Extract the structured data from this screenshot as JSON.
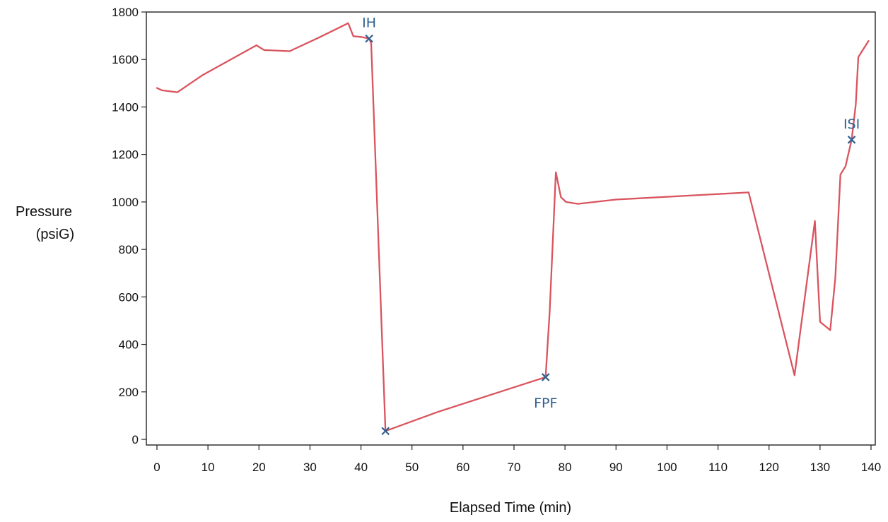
{
  "chart_data": {
    "type": "line",
    "title": "",
    "xlabel": "Elapsed Time (min)",
    "ylabel_lines": [
      "Pressure",
      "(psiG)"
    ],
    "xlim": [
      0,
      140
    ],
    "ylim": [
      0,
      1800
    ],
    "xticks": [
      0,
      10,
      20,
      30,
      40,
      50,
      60,
      70,
      80,
      90,
      100,
      110,
      120,
      130,
      140
    ],
    "yticks": [
      0,
      200,
      400,
      600,
      800,
      1000,
      1200,
      1400,
      1600,
      1800
    ],
    "grid": false,
    "legend": "none",
    "series": [
      {
        "color": "#d9545e",
        "points": [
          [
            0,
            1480
          ],
          [
            1,
            1470
          ],
          [
            4,
            1462
          ],
          [
            9,
            1535
          ],
          [
            19.5,
            1660
          ],
          [
            21,
            1640
          ],
          [
            26,
            1635
          ],
          [
            32,
            1695
          ],
          [
            37.5,
            1753
          ],
          [
            38.5,
            1698
          ],
          [
            40,
            1695
          ],
          [
            41.6,
            1688
          ],
          [
            42,
            1668
          ],
          [
            44.8,
            35
          ],
          [
            55,
            115
          ],
          [
            76.2,
            262
          ],
          [
            77,
            540
          ],
          [
            78.2,
            1125
          ],
          [
            79.2,
            1020
          ],
          [
            80.2,
            1000
          ],
          [
            82.5,
            992
          ],
          [
            90,
            1010
          ],
          [
            116,
            1040
          ],
          [
            125,
            270
          ],
          [
            129,
            920
          ],
          [
            130,
            495
          ],
          [
            132,
            460
          ],
          [
            133,
            680
          ],
          [
            134,
            1115
          ],
          [
            135,
            1150
          ],
          [
            136.2,
            1262
          ],
          [
            137,
            1410
          ],
          [
            137.5,
            1610
          ],
          [
            139.5,
            1678
          ]
        ]
      }
    ],
    "annotations": [
      {
        "label": "IH",
        "x": 41.6,
        "y": 1688,
        "label_pos": "above",
        "color": "#2e5f8f"
      },
      {
        "label": "FPF",
        "x": 44.8,
        "y": 35,
        "label_pos": "none",
        "color": "#2e5f8f"
      },
      {
        "label": "FPF",
        "x": 76.2,
        "y": 262,
        "label_pos": "below",
        "color": "#2e5f8f"
      },
      {
        "label": "ISI",
        "x": 136.2,
        "y": 1262,
        "label_pos": "above",
        "color": "#2e5f8f"
      }
    ]
  }
}
